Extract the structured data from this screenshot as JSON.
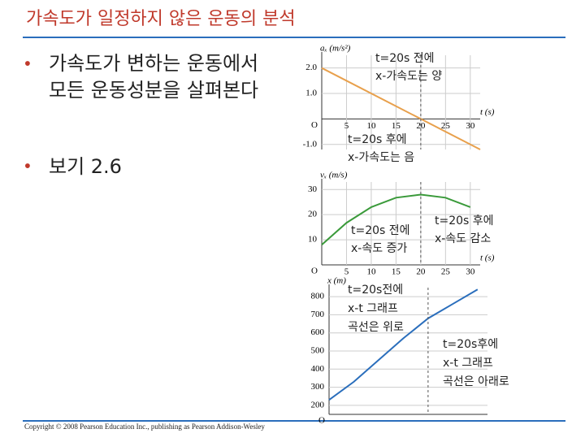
{
  "header": {
    "title": "가속도가 일정하지 않은 운동의 분석"
  },
  "bullets": [
    "가속도가 변하는 운동에서 모든 운동성분을 살펴본다",
    "보기 2.6"
  ],
  "footer": "Copyright © 2008 Pearson Education Inc., publishing as Pearson Addison-Wesley",
  "chart_data": [
    {
      "type": "line",
      "y_label": "aₓ (m/s²)",
      "x_label": "t (s)",
      "origin_label": "O",
      "x": [
        0,
        32
      ],
      "series": [
        {
          "color": "#e8a04c",
          "values": [
            2.0,
            -1.2
          ]
        }
      ],
      "xlim": [
        0,
        32
      ],
      "ylim": [
        -1.2,
        2.5
      ],
      "xticks": [
        5,
        10,
        15,
        20,
        25,
        30
      ],
      "yticks": [
        {
          "value": -1,
          "label": "-1.0"
        },
        {
          "value": 1,
          "label": "1.0"
        },
        {
          "value": 2,
          "label": "2.0"
        }
      ],
      "annotations": [
        "t=20s 전에",
        "x-가속도는 양",
        "t=20s 후에",
        "x-가속도는 음"
      ]
    },
    {
      "type": "line",
      "y_label": "vₓ (m/s)",
      "x_label": "t (s)",
      "origin_label": "O",
      "x": [
        0,
        5,
        10,
        15,
        20,
        25,
        30
      ],
      "series": [
        {
          "color": "#3a9a3a",
          "values": [
            8,
            16.75,
            23,
            26.75,
            28,
            26.75,
            23
          ]
        }
      ],
      "xlim": [
        0,
        32
      ],
      "ylim": [
        0,
        33
      ],
      "xticks": [
        5,
        10,
        15,
        20,
        25,
        30
      ],
      "yticks": [
        10,
        20,
        30
      ],
      "annotations": [
        "t=20s 전에",
        "x-속도 증가",
        "t=20s 후에",
        "x-속도 감소"
      ]
    },
    {
      "type": "line",
      "y_label": "x (m)",
      "origin_label": "O",
      "x": [
        0,
        5,
        10,
        15,
        20,
        25,
        30
      ],
      "series": [
        {
          "color": "#2a6ebc",
          "values": [
            230,
            330,
            450,
            570,
            680,
            760,
            840
          ]
        }
      ],
      "xlim": [
        0,
        32
      ],
      "ylim": [
        150,
        850
      ],
      "yticks": [
        200,
        300,
        400,
        500,
        600,
        700,
        800
      ],
      "annotations": [
        "t=20s전에",
        "x-t 그래프",
        "곡선은 위로",
        "t=20s후에",
        "x-t 그래프",
        "곡선은 아래로"
      ]
    }
  ]
}
